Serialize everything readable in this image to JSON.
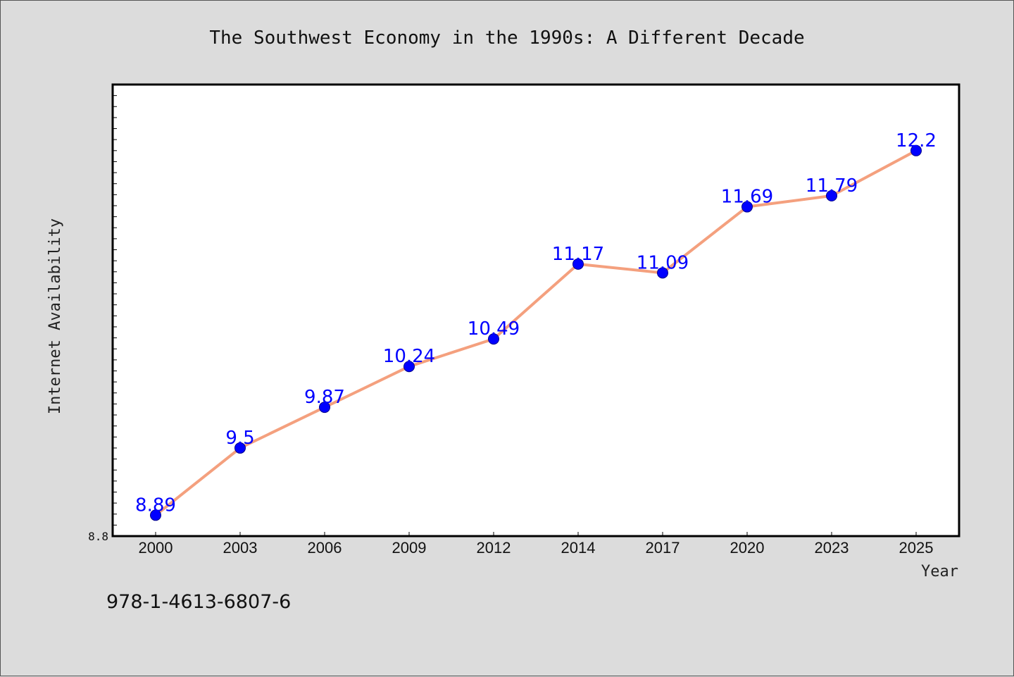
{
  "chart_data": {
    "type": "line",
    "title": "The Southwest Economy in the 1990s: A Different Decade",
    "xlabel": "Year",
    "ylabel": "Internet Availability",
    "categories": [
      "2000",
      "2003",
      "2006",
      "2009",
      "2012",
      "2014",
      "2017",
      "2020",
      "2023",
      "2025"
    ],
    "series": [
      {
        "values": [
          8.89,
          9.5,
          9.87,
          10.24,
          10.49,
          11.17,
          11.09,
          11.69,
          11.79,
          12.2
        ]
      }
    ],
    "data_labels": [
      "8.89",
      "9.5",
      "9.87",
      "10.24",
      "10.49",
      "11.17",
      "11.09",
      "11.69",
      "11.79",
      "12.2"
    ],
    "ylim": [
      8.7,
      12.8
    ],
    "yticks_labeled": [
      "8.8"
    ],
    "grid": false,
    "legend": "none",
    "colors": {
      "line": "#f4a07e",
      "marker": "#0000ff",
      "data_label": "#0000ff",
      "background": "#dcdcdc",
      "plot_background": "#ffffff"
    }
  },
  "footer_text": "978-1-4613-6807-6"
}
